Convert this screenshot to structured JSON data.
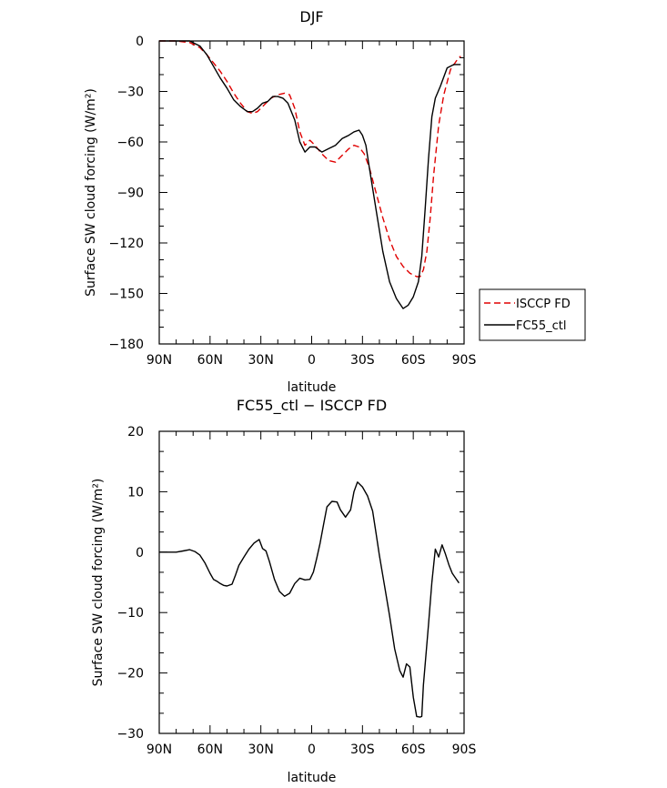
{
  "chart_data": [
    {
      "type": "line",
      "title": "DJF",
      "xlabel": "latitude",
      "ylabel": "Surface SW cloud forcing (W/m²)",
      "xlim": [
        90,
        -90
      ],
      "ylim": [
        -180,
        0
      ],
      "x_ticks": [
        90,
        60,
        30,
        0,
        -30,
        -60,
        -90
      ],
      "x_tick_labels": [
        "90N",
        "60N",
        "30N",
        "0",
        "30S",
        "60S",
        "90S"
      ],
      "y_ticks": [
        0,
        -30,
        -60,
        -90,
        -120,
        -150,
        -180
      ],
      "y_tick_labels": [
        "0",
        "−30",
        "−60",
        "−90",
        "−120",
        "−150",
        "−180"
      ],
      "legend_position": "right",
      "series": [
        {
          "name": "ISCCP FD",
          "color": "#e00000",
          "dash": "dashed",
          "x": [
            90,
            80,
            72,
            66,
            62,
            58,
            54,
            50,
            46,
            42,
            38,
            35,
            32,
            28,
            24,
            20,
            16,
            13,
            10,
            7,
            4,
            1,
            -2,
            -6,
            -10,
            -14,
            -18,
            -22,
            -25,
            -28,
            -31,
            -34,
            -38,
            -42,
            -46,
            -50,
            -54,
            -58,
            -62,
            -64,
            -66,
            -68,
            -70,
            -72,
            -75,
            -78,
            -82,
            -86,
            -88
          ],
          "y": [
            0,
            0,
            -1,
            -4,
            -8,
            -13,
            -18,
            -24,
            -31,
            -37,
            -42,
            -43,
            -42,
            -38,
            -34,
            -32,
            -31,
            -32,
            -40,
            -54,
            -62,
            -59,
            -62,
            -67,
            -71,
            -72,
            -68,
            -64,
            -62,
            -63,
            -67,
            -75,
            -90,
            -105,
            -118,
            -128,
            -134,
            -138,
            -140,
            -140,
            -136,
            -125,
            -105,
            -80,
            -50,
            -32,
            -17,
            -11,
            -9
          ]
        },
        {
          "name": "FC55_ctl",
          "color": "#000000",
          "dash": "solid",
          "x": [
            90,
            80,
            72,
            66,
            62,
            58,
            54,
            50,
            46,
            42,
            38,
            35,
            32,
            29,
            26,
            23,
            20,
            17,
            14,
            10,
            7,
            4,
            1,
            -2,
            -6,
            -10,
            -14,
            -18,
            -22,
            -25,
            -28,
            -30,
            -32,
            -34,
            -38,
            -42,
            -46,
            -50,
            -54,
            -57,
            -60,
            -63,
            -65,
            -67,
            -69,
            -71,
            -73,
            -76,
            -80,
            -84,
            -88
          ],
          "y": [
            0,
            0,
            0,
            -3,
            -8,
            -15,
            -22,
            -28,
            -35,
            -39,
            -42,
            -42,
            -40,
            -37,
            -36,
            -33,
            -33,
            -34,
            -37,
            -47,
            -60,
            -66,
            -63,
            -63,
            -66,
            -64,
            -62,
            -58,
            -56,
            -54,
            -53,
            -56,
            -62,
            -75,
            -100,
            -125,
            -143,
            -153,
            -159,
            -157,
            -152,
            -143,
            -128,
            -100,
            -70,
            -45,
            -34,
            -27,
            -16,
            -14,
            -14
          ]
        }
      ]
    },
    {
      "type": "line",
      "title": "FC55_ctl − ISCCP FD",
      "xlabel": "latitude",
      "ylabel": "Surface SW cloud forcing (W/m²)",
      "xlim": [
        90,
        -90
      ],
      "ylim": [
        -30,
        20
      ],
      "x_ticks": [
        90,
        60,
        30,
        0,
        -30,
        -60,
        -90
      ],
      "x_tick_labels": [
        "90N",
        "60N",
        "30N",
        "0",
        "30S",
        "60S",
        "90S"
      ],
      "y_ticks": [
        20,
        10,
        0,
        -10,
        -20,
        -30
      ],
      "y_tick_labels": [
        "20",
        "10",
        "0",
        "−10",
        "−20",
        "−30"
      ],
      "series": [
        {
          "color": "#000000",
          "dash": "solid",
          "x": [
            90,
            80,
            76,
            72,
            69,
            66,
            63,
            60,
            58,
            56,
            54,
            52,
            50,
            47,
            45,
            43,
            40,
            37,
            34,
            31,
            29,
            27,
            25,
            22,
            19,
            16,
            13,
            10,
            7,
            4,
            1,
            -1,
            -3,
            -5,
            -7,
            -9,
            -12,
            -15,
            -17,
            -20,
            -23,
            -25,
            -27,
            -30,
            -33,
            -36,
            -38,
            -40,
            -43,
            -46,
            -49,
            -52,
            -54,
            -56,
            -58,
            -60,
            -62,
            -64,
            -65,
            -66,
            -69,
            -71,
            -73,
            -75,
            -77,
            -79,
            -81,
            -83,
            -85,
            -87
          ],
          "y": [
            0,
            0,
            0.2,
            0.4,
            0.1,
            -0.5,
            -1.8,
            -3.5,
            -4.5,
            -4.8,
            -5.2,
            -5.5,
            -5.6,
            -5.3,
            -3.8,
            -2.2,
            -0.8,
            0.5,
            1.5,
            2.1,
            0.6,
            0.2,
            -1.5,
            -4.5,
            -6.5,
            -7.3,
            -6.8,
            -5.2,
            -4.3,
            -4.6,
            -4.5,
            -3.3,
            -1.0,
            1.5,
            4.5,
            7.5,
            8.4,
            8.3,
            7.0,
            5.8,
            7.0,
            10.0,
            11.6,
            10.8,
            9.3,
            6.8,
            3.2,
            -0.5,
            -5.5,
            -10.5,
            -16.0,
            -19.6,
            -20.7,
            -18.5,
            -19.0,
            -24.0,
            -27.2,
            -27.3,
            -27.2,
            -22.0,
            -12.0,
            -5.0,
            0.5,
            -0.8,
            1.2,
            -0.3,
            -2.1,
            -3.5,
            -4.3,
            -5.1
          ]
        }
      ]
    }
  ]
}
